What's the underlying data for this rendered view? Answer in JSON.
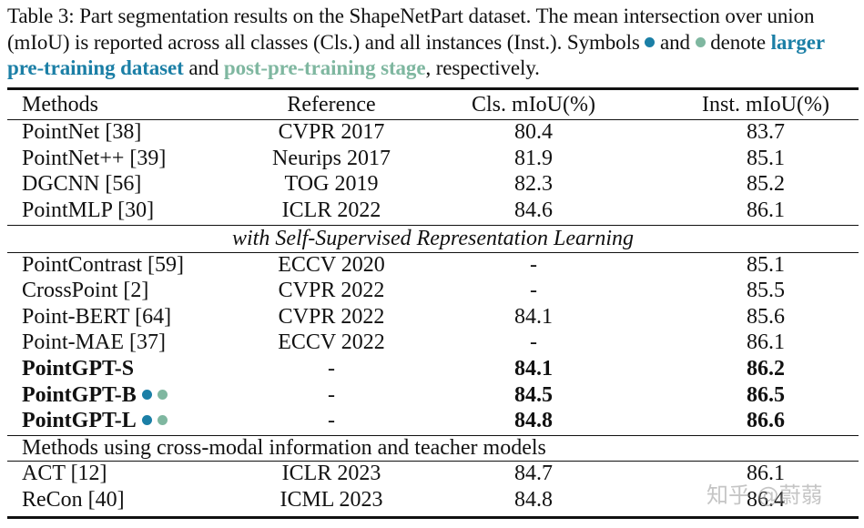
{
  "caption": {
    "part1": "Table 3: Part segmentation results on the ShapeNetPart dataset. The mean intersection over union (mIoU) is reported across all classes (Cls.) and all instances (Inst.). Symbols ",
    "and_word": " and ",
    "part2": " denote ",
    "highlight_a": "larger pre-training dataset",
    "between": " and ",
    "highlight_b": "post-pre-training stage",
    "part3": ", respectively."
  },
  "colors": {
    "symbol_a": "#1b7fa6",
    "symbol_b": "#7fb7a0"
  },
  "table": {
    "headers": {
      "methods": "Methods",
      "reference": "Reference",
      "cls": "Cls. mIoU(%)",
      "inst": "Inst. mIoU(%)"
    },
    "group1": [
      {
        "method": "PointNet [38]",
        "reference": "CVPR 2017",
        "cls": "80.4",
        "inst": "83.7"
      },
      {
        "method": "PointNet++ [39]",
        "reference": "Neurips 2017",
        "cls": "81.9",
        "inst": "85.1"
      },
      {
        "method": "DGCNN [56]",
        "reference": "TOG 2019",
        "cls": "82.3",
        "inst": "85.2"
      },
      {
        "method": "PointMLP [30]",
        "reference": "ICLR 2022",
        "cls": "84.6",
        "inst": "86.1"
      }
    ],
    "section2_title": "with Self-Supervised Representation Learning",
    "group2": [
      {
        "method": "PointContrast [59]",
        "reference": "ECCV 2020",
        "cls": "-",
        "inst": "85.1"
      },
      {
        "method": "CrossPoint [2]",
        "reference": "CVPR 2022",
        "cls": "-",
        "inst": "85.5"
      },
      {
        "method": "Point-BERT [64]",
        "reference": "CVPR 2022",
        "cls": "84.1",
        "inst": "85.6"
      },
      {
        "method": "Point-MAE [37]",
        "reference": "ECCV 2022",
        "cls": "-",
        "inst": "86.1"
      },
      {
        "method": "PointGPT-S",
        "reference": "-",
        "cls": "84.1",
        "inst": "86.2"
      },
      {
        "method": "PointGPT-B",
        "reference": "-",
        "cls": "84.5",
        "inst": "86.5"
      },
      {
        "method": "PointGPT-L",
        "reference": "-",
        "cls": "84.8",
        "inst": "86.6"
      }
    ],
    "section3_title": "Methods using cross-modal information and teacher models",
    "group3": [
      {
        "method": "ACT [12]",
        "reference": "ICLR 2023",
        "cls": "84.7",
        "inst": "86.1"
      },
      {
        "method": "ReCon [40]",
        "reference": "ICML 2023",
        "cls": "84.8",
        "inst": "86.4"
      }
    ]
  },
  "watermark": "知乎 @蔚蒻"
}
